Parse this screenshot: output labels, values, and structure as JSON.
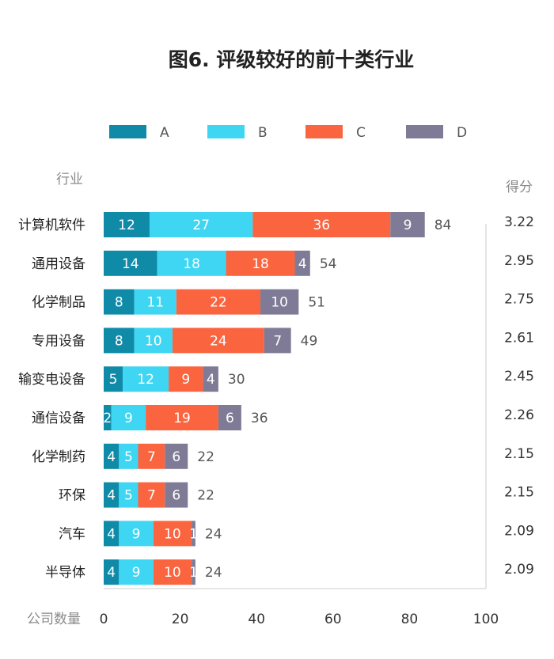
{
  "chart_data": {
    "type": "bar",
    "orientation": "horizontal",
    "stacked": true,
    "title": "图6. 评级较好的前十类行业",
    "category_header": "行业",
    "score_header": "得分",
    "xlabel": "公司数量",
    "xlim": [
      0,
      100
    ],
    "xticks": [
      "0",
      "20",
      "40",
      "60",
      "80",
      "100"
    ],
    "legend_position": "top",
    "categories": [
      "计算机软件",
      "通用设备",
      "化学制品",
      "专用设备",
      "输变电设备",
      "通信设备",
      "化学制药",
      "环保",
      "汽车",
      "半导体"
    ],
    "series": [
      {
        "name": "A",
        "color": "#0f8aa7",
        "values": [
          12,
          14,
          8,
          8,
          5,
          2,
          4,
          4,
          4,
          4
        ]
      },
      {
        "name": "B",
        "color": "#3ed6f2",
        "values": [
          27,
          18,
          11,
          10,
          12,
          9,
          5,
          5,
          9,
          9
        ]
      },
      {
        "name": "C",
        "color": "#fa6540",
        "values": [
          36,
          18,
          22,
          24,
          9,
          19,
          7,
          7,
          10,
          10
        ]
      },
      {
        "name": "D",
        "color": "#7f7b96",
        "values": [
          9,
          4,
          10,
          7,
          4,
          6,
          6,
          6,
          1,
          1
        ]
      }
    ],
    "totals": [
      84,
      54,
      51,
      49,
      30,
      36,
      22,
      22,
      24,
      24
    ],
    "scores": [
      "3.22",
      "2.95",
      "2.75",
      "2.61",
      "2.45",
      "2.26",
      "2.15",
      "2.15",
      "2.09",
      "2.09"
    ]
  }
}
